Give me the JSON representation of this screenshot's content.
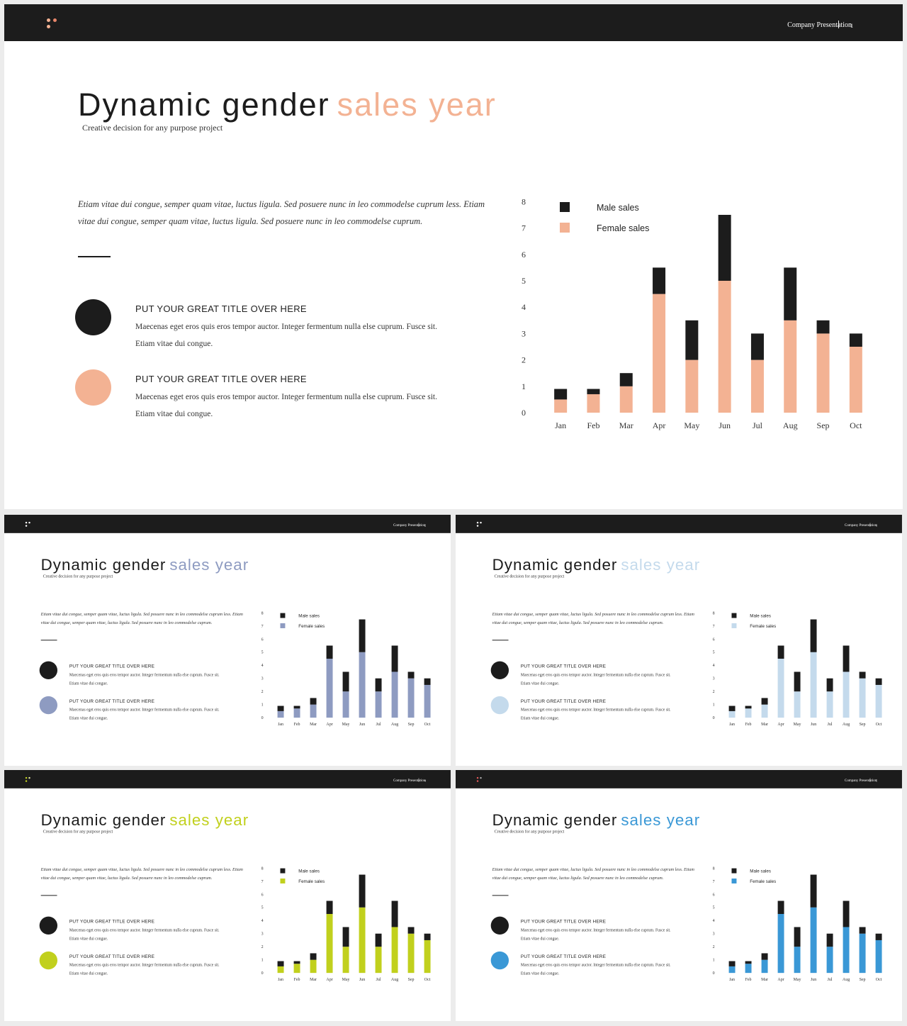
{
  "slides": [
    {
      "accent": "#f3b293",
      "logo_colors": [
        "#f3b293",
        "#e8866a",
        "#f3b293"
      ],
      "page_num": "1"
    },
    {
      "accent": "#8e9bc1",
      "logo_colors": [
        "#ffffff",
        "#ffffff",
        "#ffffff"
      ],
      "page_num": "2"
    },
    {
      "accent": "#c4daec",
      "logo_colors": [
        "#ffffff",
        "#ffffff",
        "#ffffff"
      ],
      "page_num": "3"
    },
    {
      "accent": "#c1d01d",
      "logo_colors": [
        "#c1d01d",
        "#e4e7a7",
        "#c1d01d"
      ],
      "page_num": "4"
    },
    {
      "accent": "#3a98d6",
      "logo_colors": [
        "#e35a5a",
        "#aaaaaa",
        "#e35a5a"
      ],
      "page_num": "5"
    }
  ],
  "header": {
    "company": "Company Presentation"
  },
  "title": {
    "main": "Dynamic gender",
    "accent": "sales year"
  },
  "subtitle": "Creative decision for any purpose project",
  "intro": "Etiam vitae dui congue, semper quam vitae, luctus ligula. Sed posuere nunc in leo commodelse cuprum less. Etiam vitae dui congue, semper quam vitae, luctus ligula. Sed posuere nunc in leo commodelse cuprum.",
  "features": [
    {
      "title": "PUT YOUR GREAT TITLE OVER HERE",
      "body": "Maecenas eget eros quis eros tempor auctor. Integer fermentum nulla else cuprum. Fusce sit. Etiam vitae dui congue."
    },
    {
      "title": "PUT YOUR GREAT TITLE OVER HERE",
      "body": "Maecenas eget eros quis eros tempor auctor. Integer fermentum nulla else cuprum. Fusce sit. Etiam vitae dui congue."
    }
  ],
  "colors": {
    "dark": "#1c1c1c"
  },
  "chart_data": {
    "type": "bar",
    "stacked": true,
    "categories": [
      "Jan",
      "Feb",
      "Mar",
      "Apr",
      "May",
      "Jun",
      "Jul",
      "Aug",
      "Sep",
      "Oct"
    ],
    "series": [
      {
        "name": "Female sales",
        "values": [
          0.5,
          0.7,
          1.0,
          4.5,
          2.0,
          5.0,
          2.0,
          3.5,
          3.0,
          2.5
        ]
      },
      {
        "name": "Male sales",
        "values": [
          0.4,
          0.2,
          0.5,
          1.0,
          1.5,
          2.5,
          1.0,
          2.0,
          0.5,
          0.5
        ]
      }
    ],
    "yticks": [
      "0",
      "1",
      "2",
      "3",
      "4",
      "5",
      "6",
      "7",
      "8"
    ],
    "ylim": [
      0,
      8
    ],
    "legend": [
      "Male sales",
      "Female sales"
    ],
    "legend_position": "top-left"
  }
}
